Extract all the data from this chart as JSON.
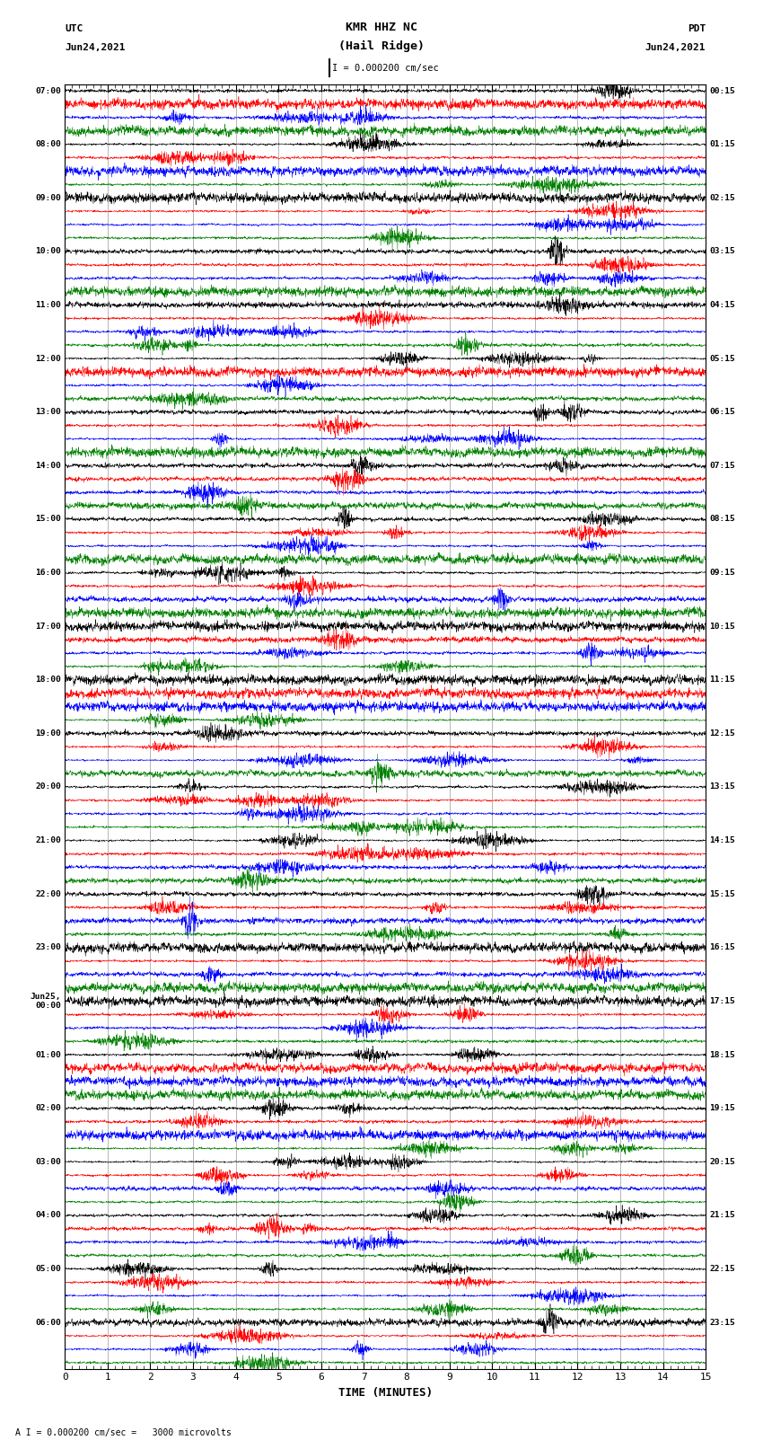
{
  "title_line1": "KMR HHZ NC",
  "title_line2": "(Hail Ridge)",
  "scale_text": "I = 0.000200 cm/sec",
  "bottom_label": "TIME (MINUTES)",
  "bottom_note": "A I = 0.000200 cm/sec =   3000 microvolts",
  "utc_times_left": [
    "07:00",
    "08:00",
    "09:00",
    "10:00",
    "11:00",
    "12:00",
    "13:00",
    "14:00",
    "15:00",
    "16:00",
    "17:00",
    "18:00",
    "19:00",
    "20:00",
    "21:00",
    "22:00",
    "23:00",
    "Jun25,\n00:00",
    "01:00",
    "02:00",
    "03:00",
    "04:00",
    "05:00",
    "06:00"
  ],
  "pdt_times_right": [
    "00:15",
    "01:15",
    "02:15",
    "03:15",
    "04:15",
    "05:15",
    "06:15",
    "07:15",
    "08:15",
    "09:15",
    "10:15",
    "11:15",
    "12:15",
    "13:15",
    "14:15",
    "15:15",
    "16:15",
    "17:15",
    "18:15",
    "19:15",
    "20:15",
    "21:15",
    "22:15",
    "23:15"
  ],
  "n_rows": 24,
  "traces_per_row": 4,
  "colors": [
    "black",
    "red",
    "blue",
    "green"
  ],
  "bg_color": "white",
  "noise_seed": 42
}
